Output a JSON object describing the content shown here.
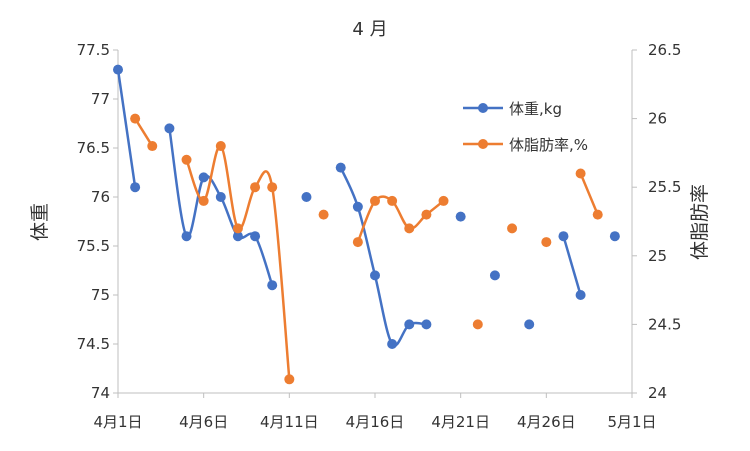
{
  "chart_data": {
    "type": "line",
    "title": "4 月",
    "ylabel": "体重",
    "y2label": "体脂肪率",
    "x": [
      "4/1",
      "4/2",
      "4/3",
      "4/4",
      "4/5",
      "4/6",
      "4/7",
      "4/8",
      "4/9",
      "4/10",
      "4/11",
      "4/12",
      "4/13",
      "4/14",
      "4/15",
      "4/16",
      "4/17",
      "4/18",
      "4/19",
      "4/20",
      "4/21",
      "4/22",
      "4/23",
      "4/24",
      "4/25",
      "4/26",
      "4/27",
      "4/28",
      "4/29",
      "4/30"
    ],
    "x_tick_labels": [
      "4月1日",
      "4月6日",
      "4月11日",
      "4月16日",
      "4月21日",
      "4月26日",
      "5月1日"
    ],
    "ylim": [
      74,
      77.5
    ],
    "y_ticks": [
      "74",
      "74.5",
      "75",
      "75.5",
      "76",
      "76.5",
      "77",
      "77.5"
    ],
    "y2lim": [
      24,
      26.5
    ],
    "y2_ticks": [
      "24",
      "24.5",
      "25",
      "25.5",
      "26",
      "26.5"
    ],
    "series": [
      {
        "name": "体重,kg",
        "axis": "left",
        "color": "#4472C4",
        "values": [
          77.3,
          76.1,
          null,
          76.7,
          75.6,
          76.2,
          76.0,
          75.6,
          75.6,
          75.1,
          null,
          76.0,
          null,
          76.3,
          75.9,
          75.2,
          74.5,
          74.7,
          74.7,
          null,
          75.8,
          null,
          75.2,
          null,
          74.7,
          null,
          75.6,
          75.0,
          null,
          75.6
        ]
      },
      {
        "name": "体脂肪率,%",
        "axis": "right",
        "color": "#ED7D31",
        "values": [
          null,
          26.0,
          25.8,
          null,
          25.7,
          25.4,
          25.8,
          25.2,
          25.5,
          25.5,
          24.1,
          null,
          25.3,
          null,
          25.1,
          25.4,
          25.4,
          25.2,
          25.3,
          25.4,
          null,
          24.5,
          null,
          25.2,
          null,
          25.1,
          null,
          25.6,
          25.3,
          null
        ]
      }
    ],
    "legend_position": "top-right",
    "grid": false
  }
}
